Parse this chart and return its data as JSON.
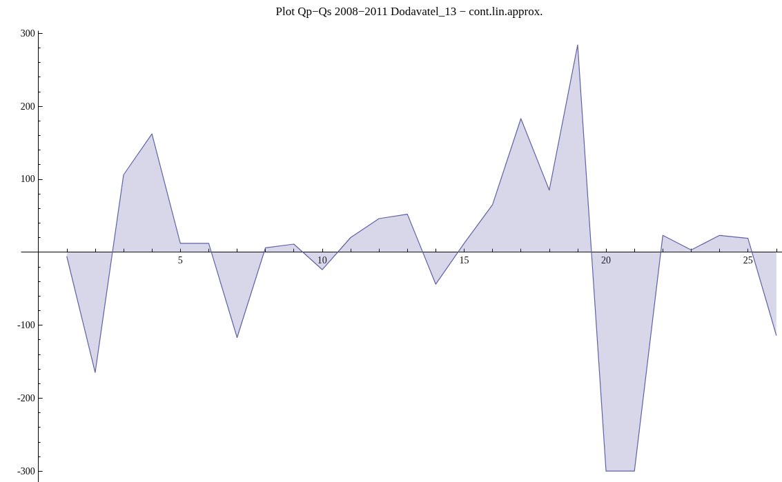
{
  "chart_data": {
    "type": "area",
    "title": "Plot Qp−Qs 2008−2011 Dodavatel_13 − cont.lin.approx.",
    "x": [
      1,
      2,
      3,
      4,
      5,
      6,
      7,
      8,
      9,
      10,
      11,
      12,
      13,
      14,
      15,
      16,
      17,
      18,
      19,
      20,
      21,
      22,
      23,
      24,
      25,
      26
    ],
    "values": [
      -6,
      -165,
      106,
      162,
      12,
      12,
      -117,
      6,
      11,
      -24,
      20,
      46,
      52,
      -44,
      12,
      65,
      183,
      85,
      284,
      -300,
      -300,
      23,
      3,
      23,
      19,
      -114
    ],
    "color": "#6060a8",
    "xlim": [
      -0.6,
      26.2
    ],
    "xticks": [
      {
        "value": 1,
        "label": null
      },
      {
        "value": 2,
        "label": null
      },
      {
        "value": 3,
        "label": null
      },
      {
        "value": 4,
        "label": null
      },
      5,
      {
        "value": 6,
        "label": null
      },
      {
        "value": 7,
        "label": null
      },
      {
        "value": 8,
        "label": null
      },
      {
        "value": 9,
        "label": null
      },
      10,
      {
        "value": 11,
        "label": null
      },
      {
        "value": 12,
        "label": null
      },
      {
        "value": 13,
        "label": null
      },
      {
        "value": 14,
        "label": null
      },
      15,
      {
        "value": 16,
        "label": null
      },
      {
        "value": 17,
        "label": null
      },
      {
        "value": 18,
        "label": null
      },
      {
        "value": 19,
        "label": null
      },
      20,
      {
        "value": 21,
        "label": null
      },
      {
        "value": 22,
        "label": null
      },
      {
        "value": 23,
        "label": null
      },
      {
        "value": 24,
        "label": null
      },
      25,
      {
        "value": 26,
        "label": null
      }
    ],
    "ylim": [
      -315,
      303
    ],
    "yticks": [
      -300,
      {
        "value": -280,
        "label": null
      },
      {
        "value": -260,
        "label": null
      },
      {
        "value": -240,
        "label": null
      },
      {
        "value": -220,
        "label": null
      },
      -200,
      {
        "value": -180,
        "label": null
      },
      {
        "value": -160,
        "label": null
      },
      {
        "value": -140,
        "label": null
      },
      {
        "value": -120,
        "label": null
      },
      -100,
      {
        "value": -80,
        "label": null
      },
      {
        "value": -60,
        "label": null
      },
      {
        "value": -40,
        "label": null
      },
      {
        "value": -20,
        "label": null
      },
      {
        "value": 20,
        "label": null
      },
      {
        "value": 40,
        "label": null
      },
      {
        "value": 60,
        "label": null
      },
      {
        "value": 80,
        "label": null
      },
      100,
      {
        "value": 120,
        "label": null
      },
      {
        "value": 140,
        "label": null
      },
      {
        "value": 160,
        "label": null
      },
      {
        "value": 180,
        "label": null
      },
      200,
      {
        "value": 220,
        "label": null
      },
      {
        "value": 240,
        "label": null
      },
      {
        "value": 260,
        "label": null
      },
      {
        "value": 280,
        "label": null
      },
      300
    ],
    "marker": "none"
  }
}
